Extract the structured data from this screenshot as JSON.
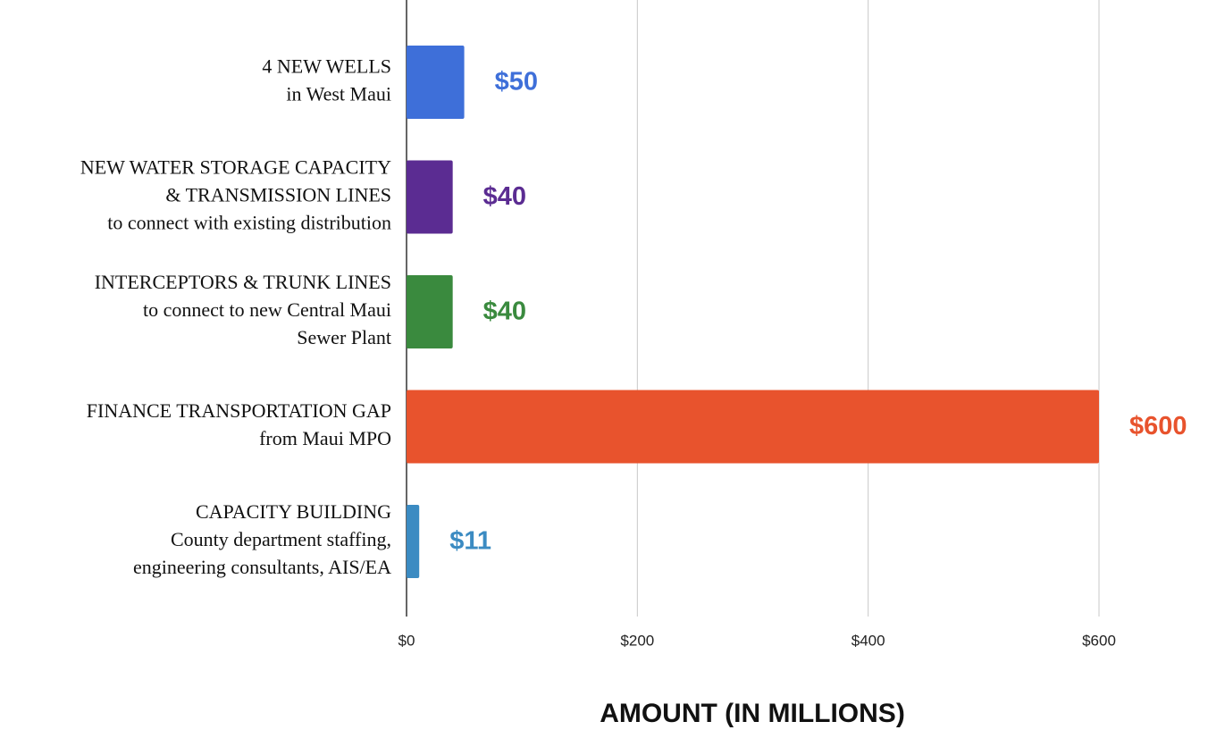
{
  "chart_data": {
    "type": "barh",
    "categories": [
      [
        "4 NEW WELLS",
        "in West Maui"
      ],
      [
        "NEW WATER STORAGE CAPACITY",
        "& TRANSMISSION LINES",
        "to connect with existing distribution"
      ],
      [
        "INTERCEPTORS & TRUNK LINES",
        "to connect to new Central Maui",
        "Sewer Plant"
      ],
      [
        "FINANCE TRANSPORTATION GAP",
        "from Maui MPO"
      ],
      [
        "CAPACITY BUILDING",
        "County department staffing,",
        "engineering consultants, AIS/EA"
      ]
    ],
    "values": [
      50,
      40,
      40,
      600,
      11
    ],
    "value_labels": [
      "$50",
      "$40",
      "$40",
      "$600",
      "$11"
    ],
    "colors": [
      "#3e6fd9",
      "#5b2c92",
      "#3a8a3e",
      "#e8532d",
      "#3b8bc2"
    ],
    "xlim": [
      0,
      600
    ],
    "xticks": [
      {
        "value": 0,
        "label": "$0"
      },
      {
        "value": 200,
        "label": "$200"
      },
      {
        "value": 400,
        "label": "$400"
      },
      {
        "value": 600,
        "label": "$600"
      }
    ],
    "xlabel": "AMOUNT (IN MILLIONS)",
    "grid": true
  }
}
